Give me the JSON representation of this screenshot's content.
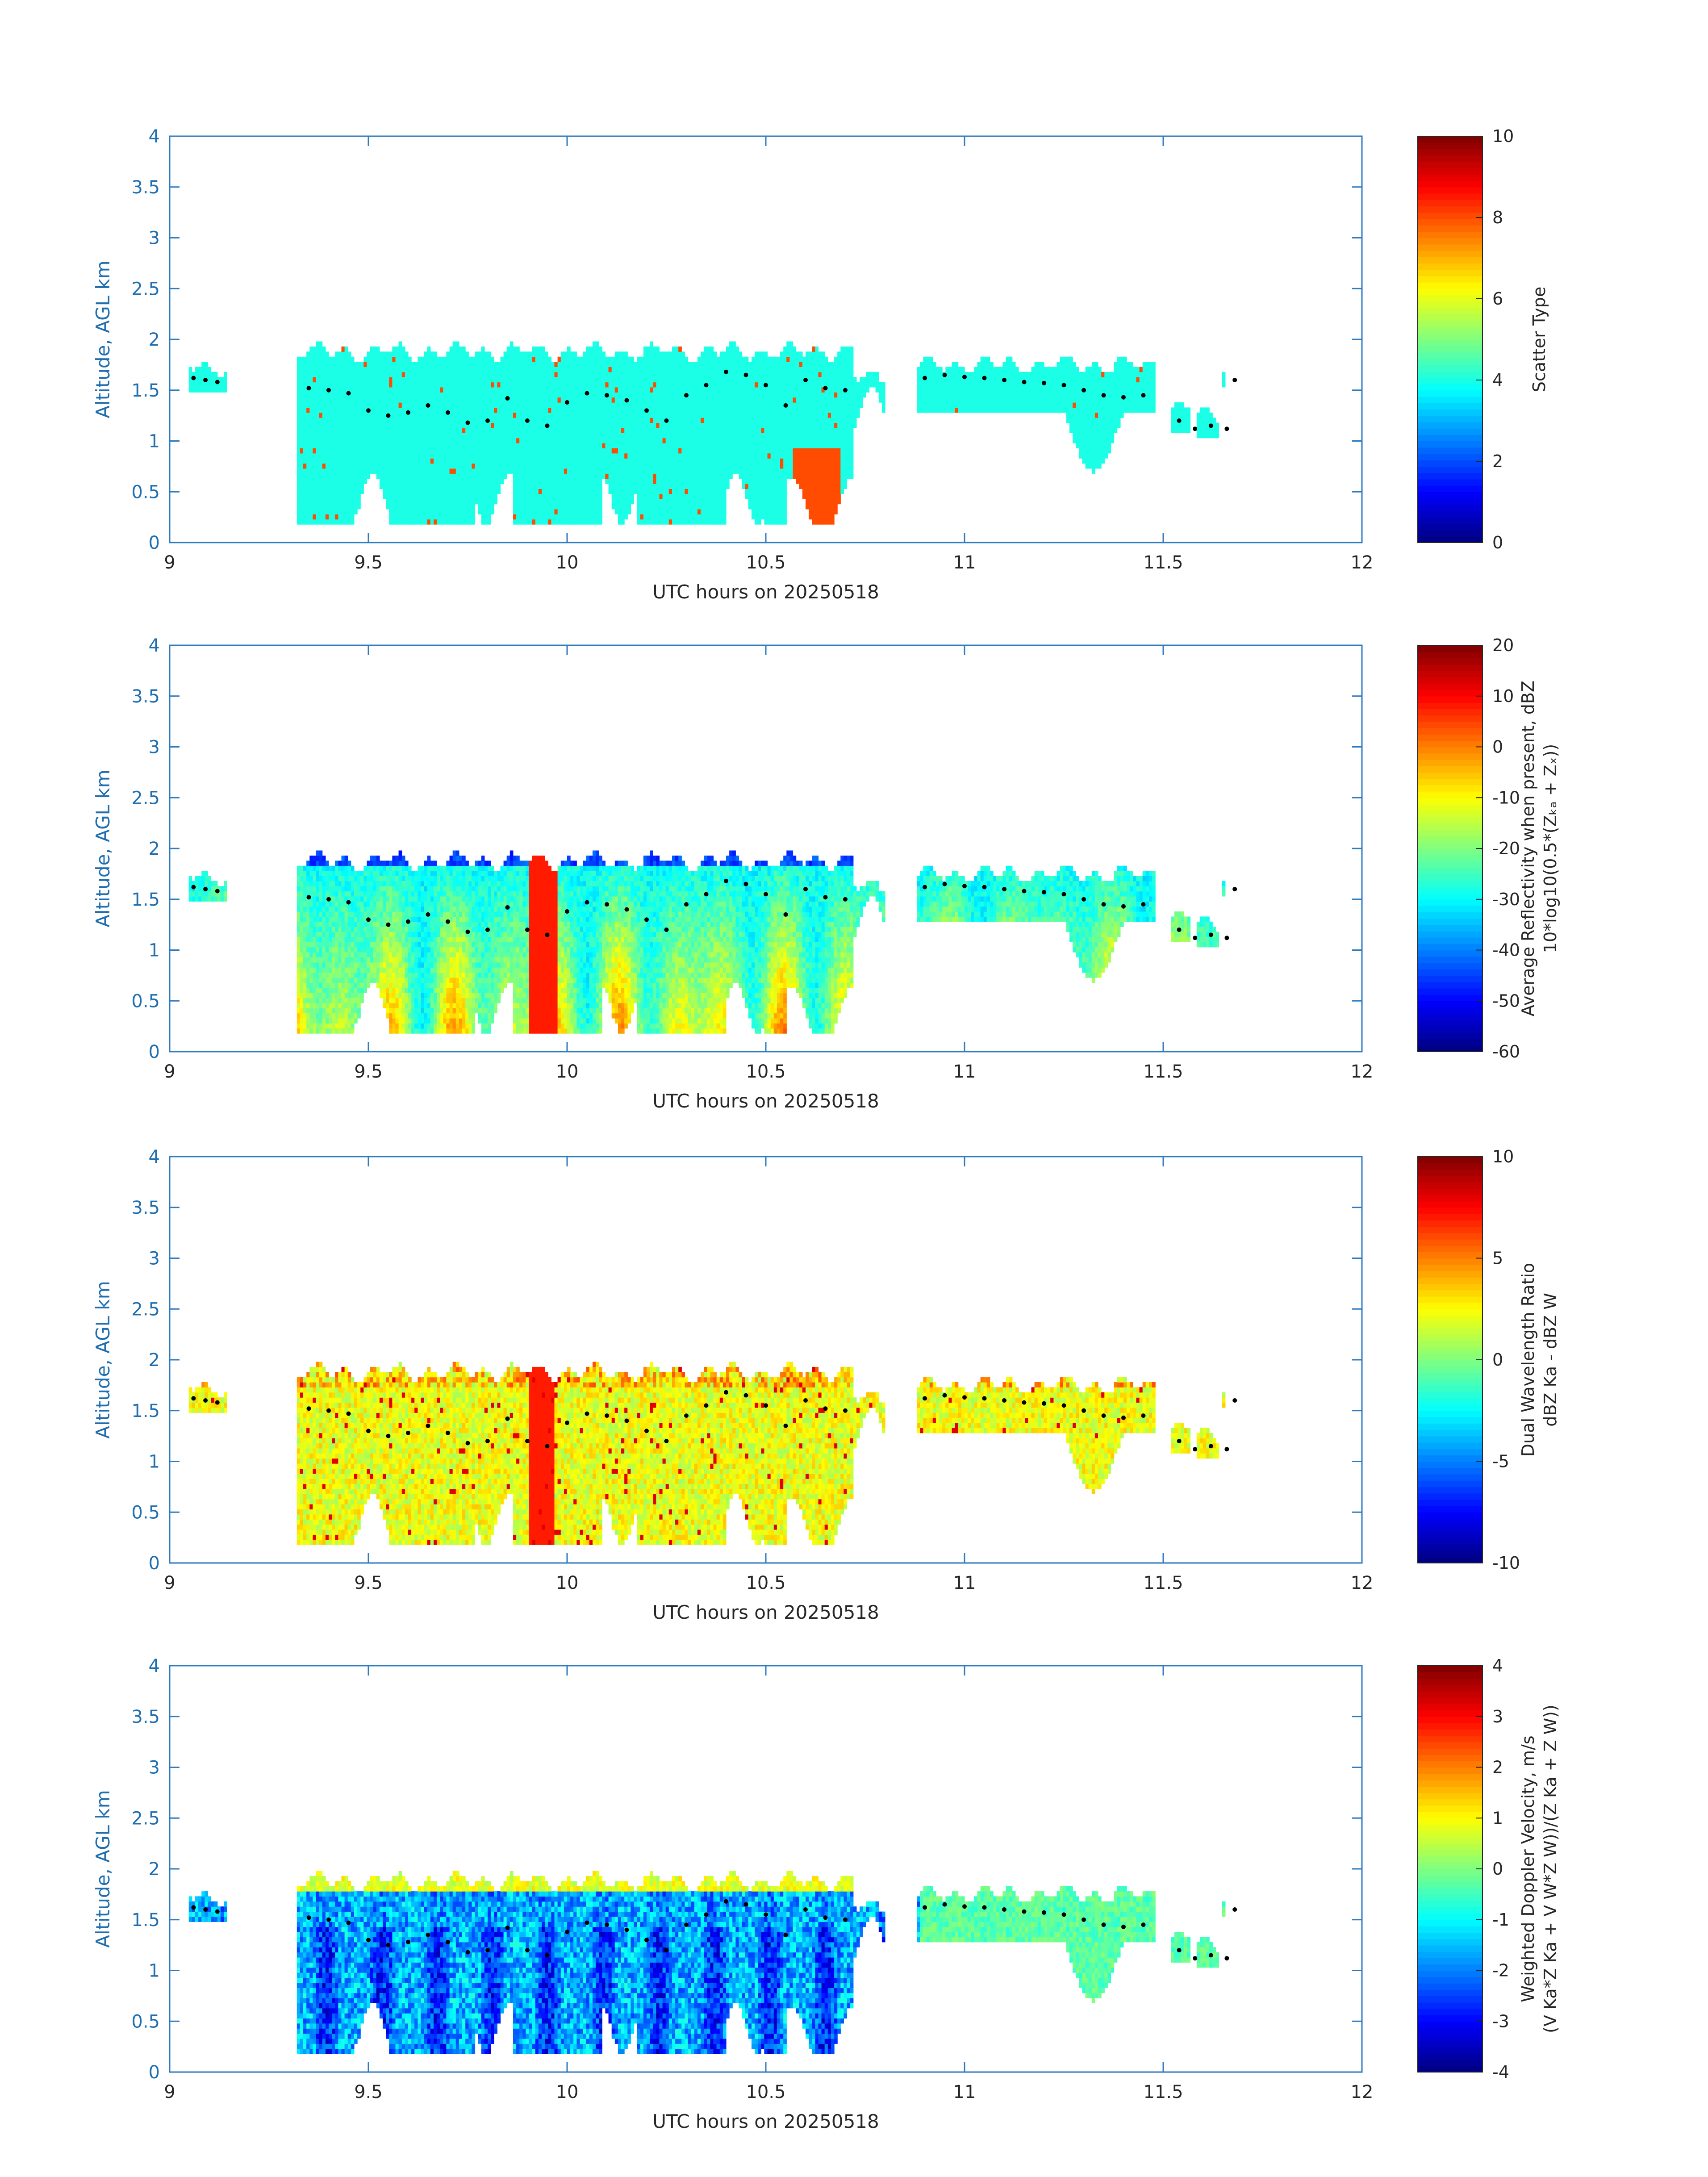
{
  "figure": {
    "background": "#ffffff"
  },
  "colors": {
    "axis": "#2f7bbf",
    "axis_text": "#1f6fb0",
    "dark_text": "#262626",
    "cloud_top_marker": "#000000",
    "colormap": "jet"
  },
  "chart_data": [
    {
      "type": "heatmap",
      "title": "",
      "xlabel": "UTC hours on 20250518",
      "ylabel": "Altitude, AGL km",
      "xlim": [
        9,
        12
      ],
      "ylim": [
        0,
        4
      ],
      "xticks": [
        9,
        9.5,
        10,
        10.5,
        11,
        11.5,
        12
      ],
      "yticks": [
        0,
        0.5,
        1,
        1.5,
        2,
        2.5,
        3,
        3.5,
        4
      ],
      "colorbar": {
        "label_lines": [
          "Scatter Type"
        ],
        "range": [
          0,
          10
        ],
        "ticks": [
          0,
          2,
          4,
          6,
          8,
          10
        ]
      },
      "profile": "scatter"
    },
    {
      "type": "heatmap",
      "title": "",
      "xlabel": "UTC hours on 20250518",
      "ylabel": "Altitude, AGL km",
      "xlim": [
        9,
        12
      ],
      "ylim": [
        0,
        4
      ],
      "xticks": [
        9,
        9.5,
        10,
        10.5,
        11,
        11.5,
        12
      ],
      "yticks": [
        0,
        0.5,
        1,
        1.5,
        2,
        2.5,
        3,
        3.5,
        4
      ],
      "colorbar": {
        "label_lines": [
          "Average Reflectivity when present, dBZ",
          "10*log10(0.5*(Zₖₐ + Zₓ))"
        ],
        "range": [
          -60,
          20
        ],
        "ticks": [
          -60,
          -50,
          -40,
          -30,
          -20,
          -10,
          0,
          10,
          20
        ]
      },
      "profile": "reflectivity"
    },
    {
      "type": "heatmap",
      "title": "",
      "xlabel": "UTC hours on 20250518",
      "ylabel": "Altitude, AGL km",
      "xlim": [
        9,
        12
      ],
      "ylim": [
        0,
        4
      ],
      "xticks": [
        9,
        9.5,
        10,
        10.5,
        11,
        11.5,
        12
      ],
      "yticks": [
        0,
        0.5,
        1,
        1.5,
        2,
        2.5,
        3,
        3.5,
        4
      ],
      "colorbar": {
        "label_lines": [
          "Dual Wavelength Ratio",
          "dBZ Ka - dBZ W"
        ],
        "range": [
          -10,
          10
        ],
        "ticks": [
          -10,
          -5,
          0,
          5,
          10
        ]
      },
      "profile": "dwr"
    },
    {
      "type": "heatmap",
      "title": "",
      "xlabel": "UTC hours on 20250518",
      "ylabel": "Altitude, AGL km",
      "xlim": [
        9,
        12
      ],
      "ylim": [
        0,
        4
      ],
      "xticks": [
        9,
        9.5,
        10,
        10.5,
        11,
        11.5,
        12
      ],
      "yticks": [
        0,
        0.5,
        1,
        1.5,
        2,
        2.5,
        3,
        3.5,
        4
      ],
      "colorbar": {
        "label_lines": [
          "Weighted Doppler Velocity, m/s",
          "(V Ka*Z Ka + V W*Z W))/(Z Ka + Z W))"
        ],
        "range": [
          -4,
          4
        ],
        "ticks": [
          -4,
          -3,
          -2,
          -1,
          0,
          1,
          2,
          3,
          4
        ]
      },
      "profile": "velocity"
    }
  ],
  "cloud": {
    "segments": [
      {
        "x0": 9.05,
        "x1": 9.14,
        "top": 1.72,
        "base": 1.5
      },
      {
        "x0": 9.32,
        "x1": 10.72,
        "top": 1.88,
        "base": 0.18
      },
      {
        "x0": 10.72,
        "x1": 10.8,
        "top": 1.62,
        "base": 1.05
      },
      {
        "x0": 10.88,
        "x1": 11.48,
        "top": 1.75,
        "base": 1.3
      },
      {
        "x0": 11.52,
        "x1": 11.57,
        "top": 1.35,
        "base": 1.1
      },
      {
        "x0": 11.58,
        "x1": 11.64,
        "top": 1.25,
        "base": 1.05
      },
      {
        "x0": 11.65,
        "x1": 11.7,
        "top": 1.72,
        "base": 1.55
      }
    ],
    "cloud_top_points": [
      [
        9.06,
        1.62
      ],
      [
        9.09,
        1.6
      ],
      [
        9.12,
        1.58
      ],
      [
        9.35,
        1.52
      ],
      [
        9.4,
        1.5
      ],
      [
        9.45,
        1.47
      ],
      [
        9.5,
        1.3
      ],
      [
        9.55,
        1.25
      ],
      [
        9.6,
        1.28
      ],
      [
        9.65,
        1.35
      ],
      [
        9.7,
        1.28
      ],
      [
        9.75,
        1.18
      ],
      [
        9.8,
        1.2
      ],
      [
        9.85,
        1.42
      ],
      [
        9.9,
        1.2
      ],
      [
        9.95,
        1.15
      ],
      [
        10.0,
        1.38
      ],
      [
        10.05,
        1.47
      ],
      [
        10.1,
        1.45
      ],
      [
        10.15,
        1.4
      ],
      [
        10.2,
        1.3
      ],
      [
        10.25,
        1.2
      ],
      [
        10.3,
        1.45
      ],
      [
        10.35,
        1.55
      ],
      [
        10.4,
        1.68
      ],
      [
        10.45,
        1.65
      ],
      [
        10.5,
        1.55
      ],
      [
        10.55,
        1.35
      ],
      [
        10.6,
        1.6
      ],
      [
        10.65,
        1.52
      ],
      [
        10.7,
        1.5
      ],
      [
        10.9,
        1.62
      ],
      [
        10.95,
        1.65
      ],
      [
        11.0,
        1.63
      ],
      [
        11.05,
        1.62
      ],
      [
        11.1,
        1.6
      ],
      [
        11.15,
        1.58
      ],
      [
        11.2,
        1.57
      ],
      [
        11.25,
        1.55
      ],
      [
        11.3,
        1.5
      ],
      [
        11.35,
        1.45
      ],
      [
        11.4,
        1.43
      ],
      [
        11.45,
        1.45
      ],
      [
        11.54,
        1.2
      ],
      [
        11.58,
        1.12
      ],
      [
        11.62,
        1.15
      ],
      [
        11.66,
        1.12
      ],
      [
        11.68,
        1.6
      ]
    ]
  }
}
